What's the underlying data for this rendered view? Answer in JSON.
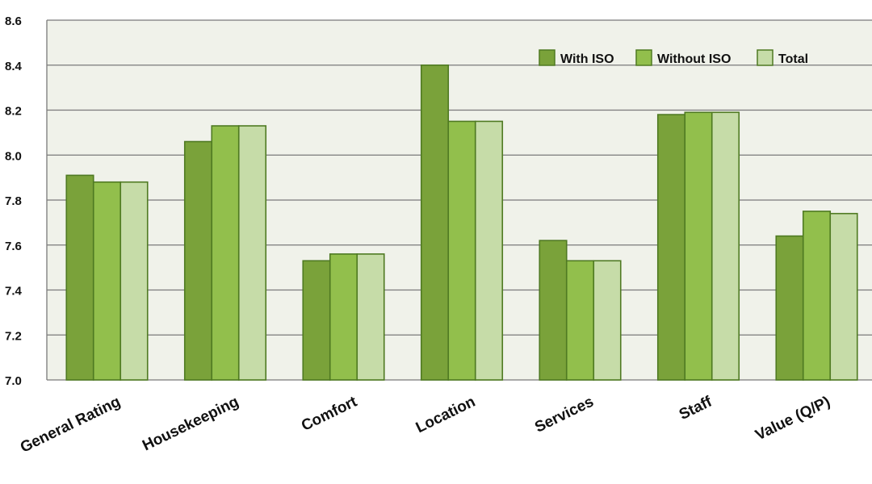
{
  "chart_data": {
    "type": "bar",
    "categories": [
      "General Rating",
      "Housekeeping",
      "Comfort",
      "Location",
      "Services",
      "Staff",
      "Value (Q/P)"
    ],
    "series": [
      {
        "name": "With ISO",
        "values": [
          7.91,
          8.06,
          7.53,
          8.4,
          7.62,
          8.18,
          7.64
        ],
        "color": "#7aa23a"
      },
      {
        "name": "Without ISO",
        "values": [
          7.88,
          8.13,
          7.56,
          8.15,
          7.53,
          8.19,
          7.75
        ],
        "color": "#92bf4c"
      },
      {
        "name": "Total",
        "values": [
          7.88,
          8.13,
          7.56,
          8.15,
          7.53,
          8.19,
          7.74
        ],
        "color": "#c6dca8"
      }
    ],
    "ylim": [
      7.0,
      8.6
    ],
    "yticks": [
      "7.0",
      "7.2",
      "7.4",
      "7.6",
      "7.8",
      "8.0",
      "8.2",
      "8.4",
      "8.6"
    ],
    "grid": true,
    "legend_position": "top-right",
    "colors": {
      "plot_background": "#f0f2ea",
      "grid": "#7a7a7a",
      "bar_stroke": "#4f7a22"
    }
  }
}
